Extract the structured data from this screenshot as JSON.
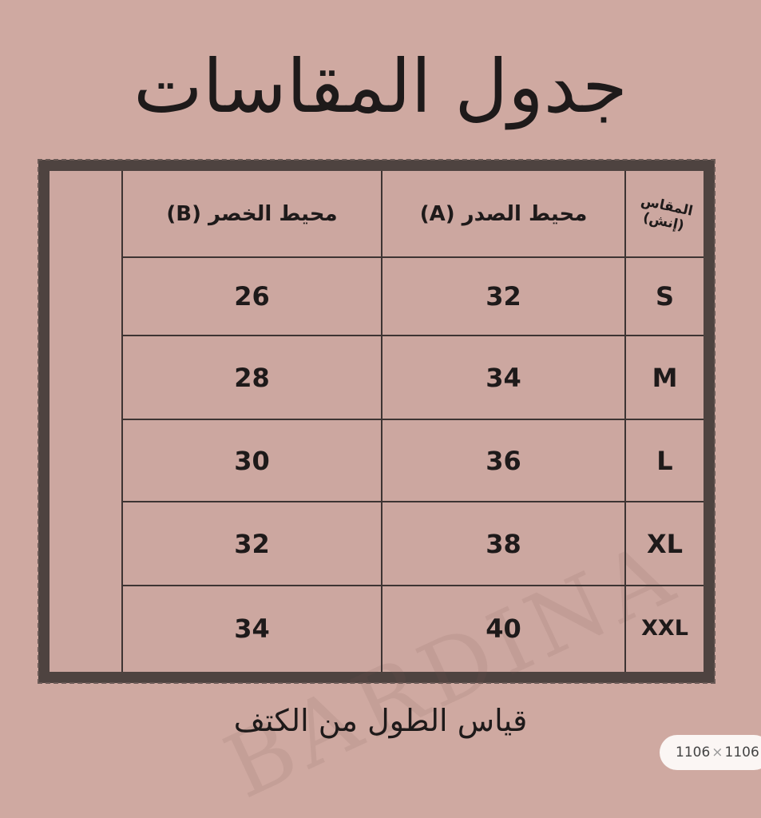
{
  "title": "جدول المقاسات",
  "table": {
    "header": {
      "size": "المقاس (إنش)",
      "chest": "محيط الصدر (A)",
      "waist": "محيط الخصر (B)"
    },
    "rows": [
      {
        "size": "S",
        "chest": "32",
        "waist": "26"
      },
      {
        "size": "M",
        "chest": "34",
        "waist": "28"
      },
      {
        "size": "L",
        "chest": "36",
        "waist": "30"
      },
      {
        "size": "XL",
        "chest": "38",
        "waist": "32"
      },
      {
        "size": "XXL",
        "chest": "40",
        "waist": "34"
      }
    ]
  },
  "watermark": "BARDINA",
  "footer": "قياس الطول من الكتف",
  "image_badge": {
    "width": "1106",
    "times": "×",
    "height": "1106"
  },
  "colors": {
    "background": "#cfa9a1",
    "frame": "#4e4340",
    "text": "#1e1a1a"
  }
}
